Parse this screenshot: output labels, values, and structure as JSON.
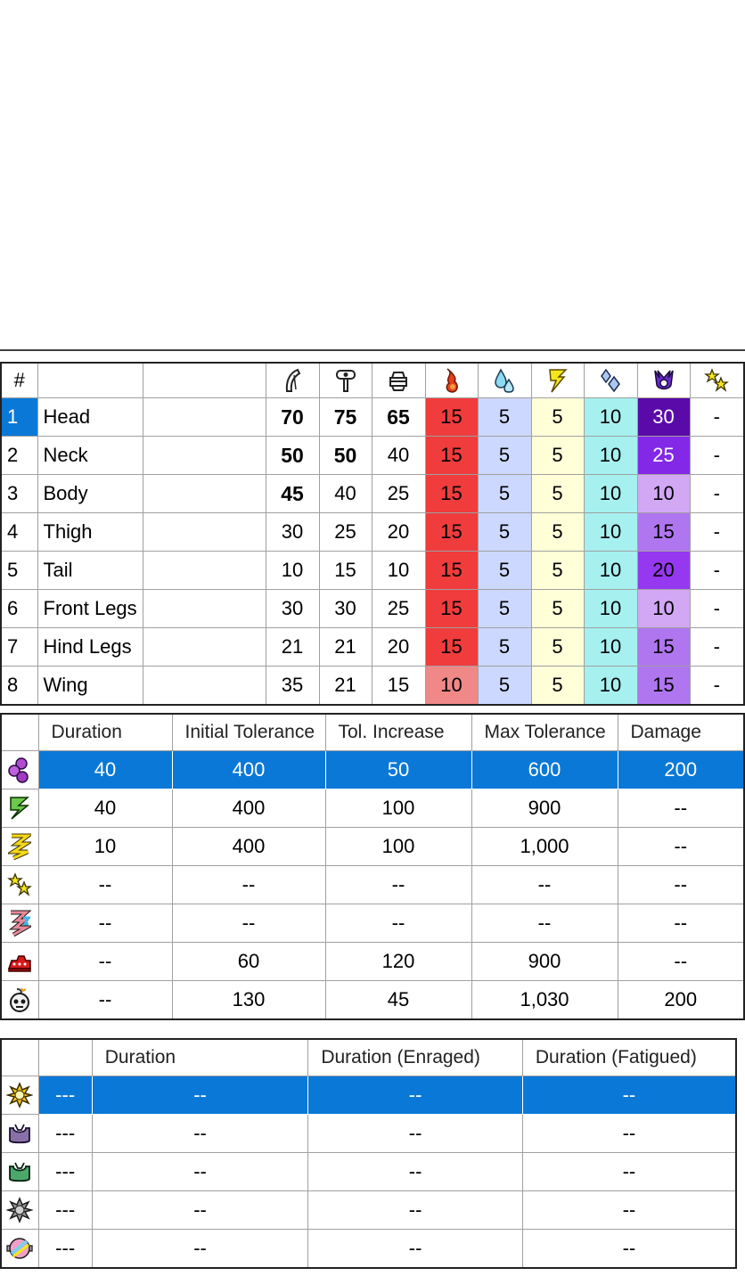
{
  "hitzone_table": {
    "header": {
      "index": "#",
      "name": "",
      "extra": ""
    },
    "icons": [
      "cut-icon",
      "impact-icon",
      "shot-icon",
      "fire-icon",
      "water-icon",
      "thunder-icon",
      "ice-icon",
      "dragon-icon",
      "stun-icon"
    ],
    "rows": [
      {
        "index": "1",
        "name": "Head",
        "cut": "70",
        "impact": "75",
        "shot": "65",
        "fire": "15",
        "water": "5",
        "thunder": "5",
        "ice": "10",
        "dragon": "30",
        "stun": "-"
      },
      {
        "index": "2",
        "name": "Neck",
        "cut": "50",
        "impact": "50",
        "shot": "40",
        "fire": "15",
        "water": "5",
        "thunder": "5",
        "ice": "10",
        "dragon": "25",
        "stun": "-"
      },
      {
        "index": "3",
        "name": "Body",
        "cut": "45",
        "impact": "40",
        "shot": "25",
        "fire": "15",
        "water": "5",
        "thunder": "5",
        "ice": "10",
        "dragon": "10",
        "stun": "-"
      },
      {
        "index": "4",
        "name": "Thigh",
        "cut": "30",
        "impact": "25",
        "shot": "20",
        "fire": "15",
        "water": "5",
        "thunder": "5",
        "ice": "10",
        "dragon": "15",
        "stun": "-"
      },
      {
        "index": "5",
        "name": "Tail",
        "cut": "10",
        "impact": "15",
        "shot": "10",
        "fire": "15",
        "water": "5",
        "thunder": "5",
        "ice": "10",
        "dragon": "20",
        "stun": "-"
      },
      {
        "index": "6",
        "name": "Front Legs",
        "cut": "30",
        "impact": "30",
        "shot": "25",
        "fire": "15",
        "water": "5",
        "thunder": "5",
        "ice": "10",
        "dragon": "10",
        "stun": "-"
      },
      {
        "index": "7",
        "name": "Hind Legs",
        "cut": "21",
        "impact": "21",
        "shot": "20",
        "fire": "15",
        "water": "5",
        "thunder": "5",
        "ice": "10",
        "dragon": "15",
        "stun": "-"
      },
      {
        "index": "8",
        "name": "Wing",
        "cut": "35",
        "impact": "21",
        "shot": "15",
        "fire": "10",
        "water": "5",
        "thunder": "5",
        "ice": "10",
        "dragon": "15",
        "stun": "-"
      }
    ]
  },
  "status_table": {
    "headers": [
      "Duration",
      "Initial Tolerance",
      "Tol. Increase",
      "Max Tolerance",
      "Damage"
    ],
    "rows": [
      {
        "icon": "poison-icon",
        "duration": "40",
        "initial": "400",
        "increase": "50",
        "max": "600",
        "damage": "200"
      },
      {
        "icon": "paralysis-icon",
        "duration": "40",
        "initial": "400",
        "increase": "100",
        "max": "900",
        "damage": "--"
      },
      {
        "icon": "sleep-icon",
        "duration": "10",
        "initial": "400",
        "increase": "100",
        "max": "1,000",
        "damage": "--"
      },
      {
        "icon": "stun-icon",
        "duration": "--",
        "initial": "--",
        "increase": "--",
        "max": "--",
        "damage": "--"
      },
      {
        "icon": "exhaust-icon",
        "duration": "--",
        "initial": "--",
        "increase": "--",
        "max": "--",
        "damage": "--"
      },
      {
        "icon": "mount-icon",
        "duration": "--",
        "initial": "60",
        "increase": "120",
        "max": "900",
        "damage": "--"
      },
      {
        "icon": "blast-icon",
        "duration": "--",
        "initial": "130",
        "increase": "45",
        "max": "1,030",
        "damage": "200"
      }
    ]
  },
  "item_table": {
    "headers": [
      "",
      "Duration",
      "Duration (Enraged)",
      "Duration (Fatigued)"
    ],
    "rows": [
      {
        "icon": "flash-bomb-icon",
        "flag": "---",
        "duration": "--",
        "enraged": "--",
        "fatigued": "--"
      },
      {
        "icon": "pitfall-trap-icon",
        "flag": "---",
        "duration": "--",
        "enraged": "--",
        "fatigued": "--"
      },
      {
        "icon": "shock-trap-icon",
        "flag": "---",
        "duration": "--",
        "enraged": "--",
        "fatigued": "--"
      },
      {
        "icon": "sonic-bomb-icon",
        "flag": "---",
        "duration": "--",
        "enraged": "--",
        "fatigued": "--"
      },
      {
        "icon": "dung-bomb-icon",
        "flag": "---",
        "duration": "--",
        "enraged": "--",
        "fatigued": "--"
      }
    ]
  },
  "colors": {
    "selection": "#0a78d7",
    "fire": "#f03c3c",
    "fire_low": "#f08888",
    "water": "#ccd8ff",
    "thunder": "#ffffd8",
    "ice": "#a6f0f0",
    "dragon_30": "#5a0aa8",
    "dragon_25": "#8228e6",
    "dragon_20": "#9638f0",
    "dragon_15": "#b076f0",
    "dragon_10": "#d2a8f5"
  }
}
